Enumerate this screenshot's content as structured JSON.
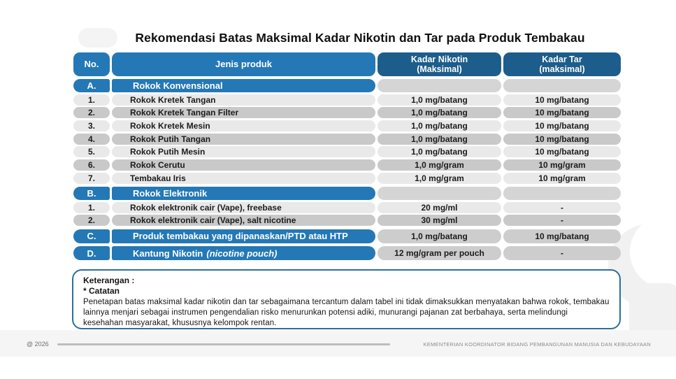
{
  "title": "Rekomendasi Batas Maksimal Kadar Nikotin dan Tar pada Produk Tembakau",
  "colors": {
    "medium_blue": "#2478b6",
    "dark_blue": "#1d5d8b",
    "row_light": "#e9e9e9",
    "row_dark": "#c9c9c9",
    "empty_pill": "#d5d5d5",
    "value_pill": "#cdcdcd",
    "note_border": "#2b6f9d"
  },
  "table": {
    "columns": {
      "no": "No.",
      "product": "Jenis produk",
      "nicotine_line1": "Kadar Nikotin",
      "nicotine_line2": "(Maksimal)",
      "tar_line1": "Kadar Tar",
      "tar_line2": "(maksimal)"
    },
    "rows": [
      {
        "type": "section",
        "no": "A.",
        "product": "Rokok Konvensional",
        "nicotine": "",
        "tar": ""
      },
      {
        "type": "data",
        "shade": "light",
        "no": "1.",
        "product": "Rokok Kretek Tangan",
        "nicotine": "1,0 mg/batang",
        "tar": "10 mg/batang"
      },
      {
        "type": "data",
        "shade": "dark",
        "no": "2.",
        "product": "Rokok Kretek Tangan Filter",
        "nicotine": "1,0 mg/batang",
        "tar": "10 mg/batang"
      },
      {
        "type": "data",
        "shade": "light",
        "no": "3.",
        "product": "Rokok Kretek Mesin",
        "nicotine": "1,0 mg/batang",
        "tar": "10 mg/batang"
      },
      {
        "type": "data",
        "shade": "dark",
        "no": "4.",
        "product": "Rokok Putih Tangan",
        "nicotine": "1,0 mg/batang",
        "tar": "10 mg/batang"
      },
      {
        "type": "data",
        "shade": "light",
        "no": "5.",
        "product": "Rokok Putih Mesin",
        "nicotine": "1,0 mg/batang",
        "tar": "10 mg/batang"
      },
      {
        "type": "data",
        "shade": "dark",
        "no": "6.",
        "product": "Rokok Cerutu",
        "nicotine": "1,0 mg/gram",
        "tar": "10 mg/gram"
      },
      {
        "type": "data",
        "shade": "light",
        "no": "7.",
        "product": "Tembakau Iris",
        "nicotine": "1,0 mg/gram",
        "tar": "10 mg/gram"
      },
      {
        "type": "section",
        "no": "B.",
        "product": "Rokok Elektronik",
        "nicotine": "",
        "tar": ""
      },
      {
        "type": "data",
        "shade": "light",
        "no": "1.",
        "product": "Rokok elektronik cair (Vape), freebase",
        "nicotine": "20 mg/ml",
        "tar": "-"
      },
      {
        "type": "data",
        "shade": "dark",
        "no": "2.",
        "product": "Rokok elektronik cair (Vape), salt nicotine",
        "nicotine": "30 mg/ml",
        "tar": "-"
      },
      {
        "type": "section-values",
        "no": "C.",
        "product": "Produk tembakau yang dipanaskan/PTD atau HTP",
        "nicotine": "1,0 mg/batang",
        "tar": "10 mg/batang"
      },
      {
        "type": "section-values",
        "no": "D.",
        "product": "Kantung Nikotin",
        "product_italic": "(nicotine pouch)",
        "nicotine": "12 mg/gram per pouch",
        "tar": "-"
      }
    ]
  },
  "notes": {
    "heading": "Keterangan :",
    "subheading": "* Catatan",
    "body": "Penetapan batas maksimal kadar nikotin dan tar sebagaimana tercantum dalam tabel ini tidak dimaksukkan menyatakan bahwa rokok, tembakau lainnya menjari sebagai instrumen pengendalian risko menurunkan potensi adiki, munurangi pajanan zat berbahaya, serta melindungi kesehahan masyarakat, khususnya kelompok rentan."
  },
  "footer": {
    "year": "@ 2026",
    "ministry": "KEMENTERIAN KOORDINATOR BIDANG PEMBANGUNAN MANUSIA DAN KEBUDAYAAN"
  }
}
